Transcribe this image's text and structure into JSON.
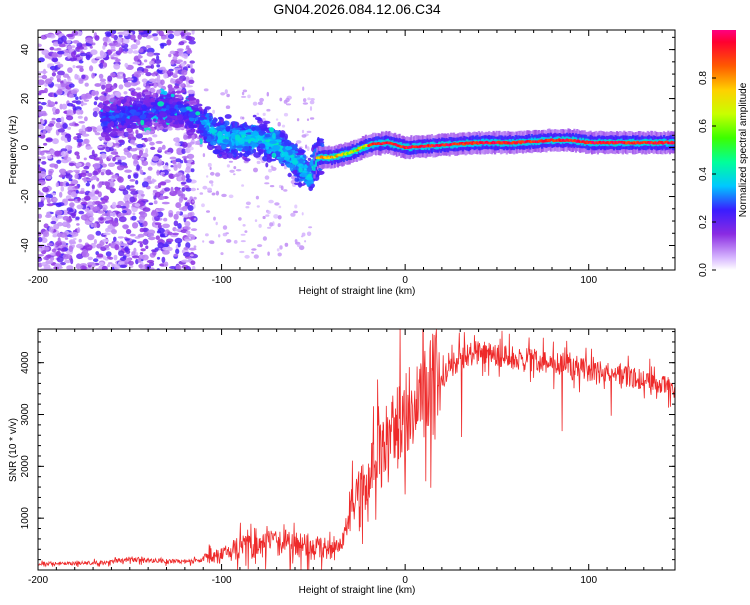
{
  "title": "GN04.2026.084.12.06.C34",
  "colors": {
    "trace": "#ee2a2a",
    "axis": "#000000"
  },
  "chart_data": [
    {
      "type": "heatmap",
      "name": "spectrogram",
      "xlabel": "Height of straight line (km)",
      "ylabel": "Frequency (Hz)",
      "xlim": [
        -200,
        147
      ],
      "ylim": [
        -50,
        48
      ],
      "xticks": [
        -200,
        -100,
        0,
        100
      ],
      "xtick_labels": [
        "-200",
        "-100",
        "0",
        "100"
      ],
      "yticks": [
        -40,
        -20,
        0,
        20,
        40
      ],
      "ytick_labels": [
        "-40",
        "-20",
        "0",
        "20",
        "40"
      ],
      "ridge": {
        "x": [
          -160,
          -140,
          -125,
          -110,
          -100,
          -90,
          -80,
          -70,
          -60,
          -52,
          -48,
          -40,
          -30,
          -20,
          -10,
          0,
          20,
          40,
          60,
          80,
          90,
          100,
          110,
          147
        ],
        "y": [
          12,
          15,
          16,
          10,
          4,
          3,
          4,
          1,
          -5,
          -12,
          -4,
          -4,
          -2,
          1,
          2,
          0,
          1,
          2,
          2,
          3,
          3,
          2,
          2,
          2
        ]
      },
      "colorbar": {
        "label": "Normalized spectral amplitude",
        "ticks": [
          0.0,
          0.2,
          0.4,
          0.6,
          0.8
        ],
        "tick_labels": [
          "0.0",
          "0.2",
          "0.4",
          "0.6",
          "0.8"
        ],
        "range": [
          0,
          1
        ],
        "stops": [
          {
            "v": 0.0,
            "c": "#ffffff"
          },
          {
            "v": 0.05,
            "c": "#d8b8ff"
          },
          {
            "v": 0.15,
            "c": "#8a2be2"
          },
          {
            "v": 0.25,
            "c": "#3a1dff"
          },
          {
            "v": 0.35,
            "c": "#00c8ff"
          },
          {
            "v": 0.45,
            "c": "#00ff9a"
          },
          {
            "v": 0.55,
            "c": "#3cff00"
          },
          {
            "v": 0.65,
            "c": "#c8ff00"
          },
          {
            "v": 0.75,
            "c": "#ffd000"
          },
          {
            "v": 0.85,
            "c": "#ff5a00"
          },
          {
            "v": 0.95,
            "c": "#ff0030"
          },
          {
            "v": 1.0,
            "c": "#ff0080"
          }
        ]
      }
    },
    {
      "type": "line",
      "name": "snr",
      "xlabel": "Height of straight line (km)",
      "ylabel": "SNR (10 * v/v)",
      "xlim": [
        -200,
        147
      ],
      "ylim": [
        0,
        4650
      ],
      "xticks": [
        -200,
        -100,
        0,
        100
      ],
      "xtick_labels": [
        "-200",
        "-100",
        "0",
        "100"
      ],
      "yticks": [
        1000,
        2000,
        3000,
        4000
      ],
      "ytick_labels": [
        "1000",
        "2000",
        "3000",
        "4000"
      ],
      "series": [
        {
          "name": "SNR",
          "x": [
            -200,
            -180,
            -160,
            -150,
            -140,
            -120,
            -110,
            -100,
            -90,
            -80,
            -70,
            -60,
            -50,
            -45,
            -40,
            -35,
            -30,
            -25,
            -20,
            -15,
            -10,
            -5,
            0,
            5,
            10,
            20,
            30,
            40,
            50,
            60,
            70,
            80,
            90,
            100,
            110,
            120,
            130,
            147
          ],
          "y": [
            120,
            130,
            150,
            220,
            180,
            160,
            200,
            290,
            430,
            470,
            540,
            500,
            450,
            430,
            380,
            400,
            1250,
            1600,
            1900,
            2200,
            2400,
            2700,
            2900,
            3100,
            3300,
            3700,
            4100,
            4200,
            4150,
            4100,
            4050,
            4000,
            3950,
            3850,
            3800,
            3750,
            3650,
            3500
          ]
        }
      ]
    }
  ]
}
